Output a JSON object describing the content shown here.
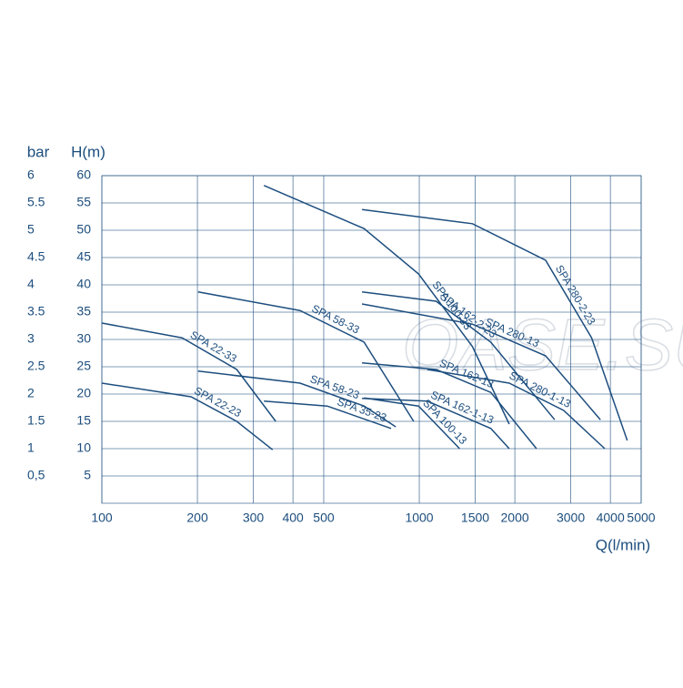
{
  "chart_data": {
    "type": "line",
    "watermark": "OASE.SU",
    "ylabel": "H(m)",
    "y2label": "bar",
    "xlabel": "Q(l/min)",
    "xscale": "log",
    "grid": true,
    "color": "#1d4e7e",
    "xlim": [
      100,
      5000
    ],
    "xticks": [
      100,
      200,
      300,
      400,
      500,
      1000,
      1500,
      2000,
      3000,
      4000,
      5000
    ],
    "ylim": [
      0,
      60
    ],
    "yticks": [
      5,
      10,
      15,
      20,
      25,
      30,
      35,
      40,
      45,
      50,
      55,
      60
    ],
    "y2lim": [
      0,
      6
    ],
    "y2ticks": [
      {
        "value": 0.5,
        "label": "0,5"
      },
      1,
      1.5,
      2,
      2.5,
      3,
      3.5,
      4,
      4.5,
      5,
      5.5,
      6
    ],
    "series": [
      {
        "name": "SPA 22-33",
        "color": "#1d4e7e",
        "x": [
          100,
          179,
          266,
          353
        ],
        "values": [
          33,
          30.3,
          24.5,
          15
        ]
      },
      {
        "name": "SPA 22-23",
        "color": "#1d4e7e",
        "x": [
          100,
          191,
          266,
          345
        ],
        "values": [
          22,
          19.5,
          15,
          9.8
        ]
      },
      {
        "name": "SPA 58-33",
        "color": "#1d4e7e",
        "x": [
          201,
          421,
          670,
          960
        ],
        "values": [
          38.7,
          35.3,
          29.5,
          15
        ]
      },
      {
        "name": "SPA 58-23",
        "color": "#1d4e7e",
        "x": [
          201,
          421,
          670,
          843
        ],
        "values": [
          24.2,
          22,
          17.8,
          14
        ]
      },
      {
        "name": "SPA 35-23",
        "color": "#1d4e7e",
        "x": [
          324,
          513,
          815
        ],
        "values": [
          18.7,
          17.8,
          13.7
        ]
      },
      {
        "name": "SPA 100-33",
        "color": "#1d4e7e",
        "x": [
          324,
          670,
          995,
          1470,
          1920
        ],
        "values": [
          58.2,
          50.3,
          42,
          28.7,
          14.5
        ]
      },
      {
        "name": "SPA 100-13",
        "color": "#1d4e7e",
        "x": [
          670,
          995,
          1340
        ],
        "values": [
          19.3,
          17.8,
          10
        ]
      },
      {
        "name": "SPA 162-2-23",
        "color": "#1d4e7e",
        "x": [
          660,
          1130,
          1680,
          2670
        ],
        "values": [
          38.7,
          37,
          29.5,
          15.3
        ]
      },
      {
        "name": "SPA 162-13",
        "color": "#1d4e7e",
        "x": [
          660,
          1130,
          1680,
          2340
        ],
        "values": [
          25.7,
          24.5,
          20.3,
          10
        ]
      },
      {
        "name": "SPA 162-1-13",
        "color": "#1d4e7e",
        "x": [
          660,
          1060,
          1680,
          1920
        ],
        "values": [
          19.2,
          18.7,
          13.7,
          10
        ]
      },
      {
        "name": "SPA 280-2-23",
        "color": "#1d4e7e",
        "x": [
          660,
          1470,
          2500,
          3490,
          4520
        ],
        "values": [
          53.8,
          51.2,
          44.5,
          30.3,
          11.5
        ]
      },
      {
        "name": "SPA 280-13",
        "color": "#1d4e7e",
        "x": [
          660,
          1470,
          2500,
          3720
        ],
        "values": [
          36.5,
          32.8,
          27,
          15.3
        ]
      },
      {
        "name": "SPA 280-1-13",
        "color": "#1d4e7e",
        "x": [
          1060,
          1920,
          2850,
          3840
        ],
        "values": [
          24.5,
          22,
          17,
          10
        ]
      }
    ]
  }
}
